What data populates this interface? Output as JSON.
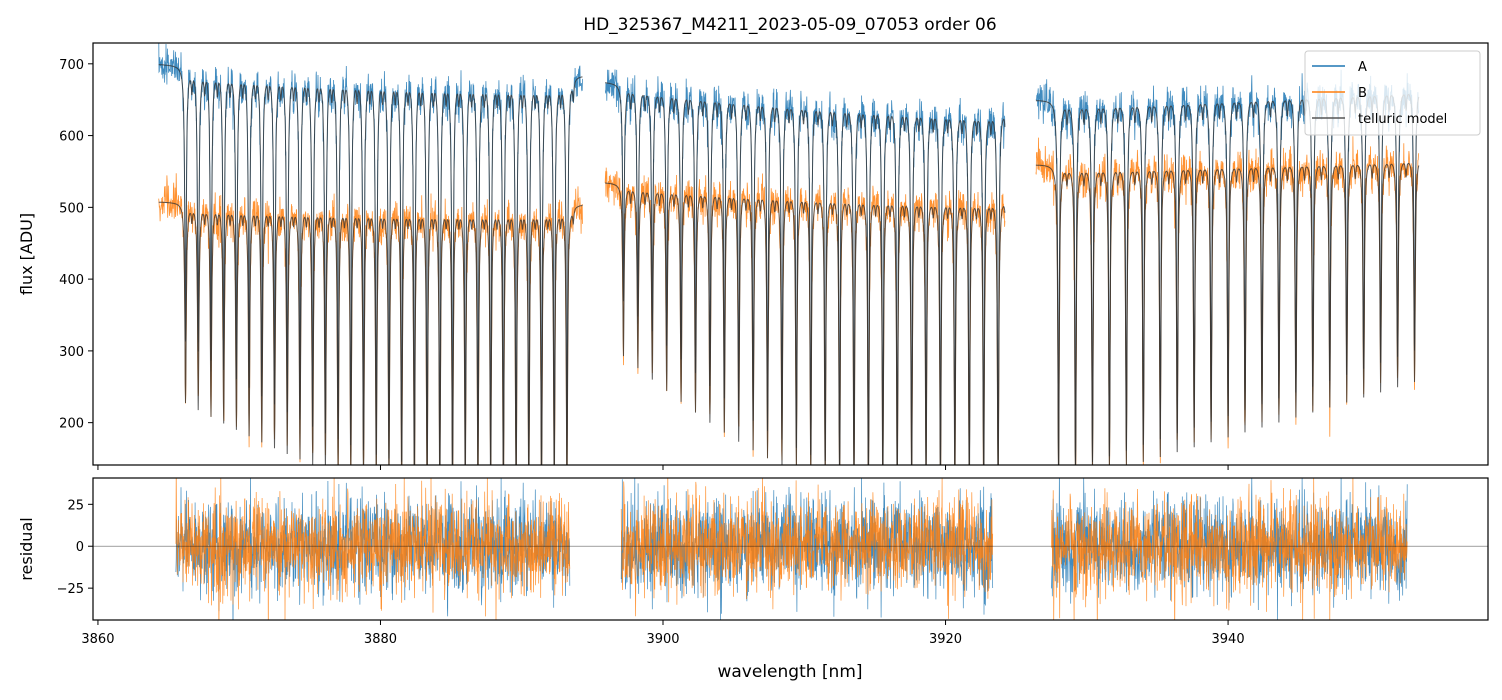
{
  "chart_data": [
    {
      "type": "line",
      "title": "HD_325367_M4211_2023-05-09_07053  order 06",
      "xlabel": "",
      "ylabel": "flux [ADU]",
      "xlim": [
        3859.65,
        3958.4
      ],
      "ylim": [
        141,
        729
      ],
      "yticks": [
        200,
        300,
        400,
        500,
        600,
        700
      ],
      "xticks": [
        3860,
        3880,
        3900,
        3920,
        3940
      ],
      "legend": {
        "placement": "top-right",
        "entries": [
          "A",
          "B",
          "telluric model"
        ]
      },
      "series_colors": {
        "A": "#1f77b4",
        "B": "#ff7f0e",
        "telluric model": "#333333"
      },
      "segments": [
        {
          "start": 3864.3,
          "end": 3894.3,
          "first_line": 3866.2,
          "spacing": 0.9,
          "cont_A": [
            700,
            685
          ],
          "cont_B": [
            508,
            505
          ],
          "depth": [
            0.55,
            0.8
          ]
        },
        {
          "start": 3895.9,
          "end": 3924.2,
          "first_line": 3897.2,
          "spacing": 1.02,
          "cont_A": [
            675,
            640
          ],
          "cont_B": [
            535,
            515
          ],
          "depth": [
            0.45,
            0.8
          ]
        },
        {
          "start": 3926.4,
          "end": 3953.5,
          "first_line": 3928.0,
          "spacing": 1.2,
          "cont_A": [
            650,
            670
          ],
          "cont_B": [
            560,
            572
          ],
          "depth": [
            0.8,
            0.55
          ]
        }
      ]
    },
    {
      "type": "line",
      "xlabel": "wavelength [nm]",
      "ylabel": "residual",
      "xlim": [
        3859.65,
        3958.4
      ],
      "ylim": [
        -44,
        40.7
      ],
      "yticks": [
        -25,
        0,
        25
      ],
      "xticks": [
        3860,
        3880,
        3900,
        3920,
        3940
      ],
      "noise_sigma": 13,
      "reference_line": 0
    }
  ],
  "labels": {
    "title": "HD_325367_M4211_2023-05-09_07053  order 06",
    "ylabel_top": "flux [ADU]",
    "ylabel_bottom": "residual",
    "xlabel": "wavelength [nm]",
    "legend_A": "A",
    "legend_B": "B",
    "legend_model": "telluric model",
    "yt": [
      "200",
      "300",
      "400",
      "500",
      "600",
      "700"
    ],
    "xt": [
      "3860",
      "3880",
      "3900",
      "3920",
      "3940"
    ],
    "rt": [
      "−25",
      "0",
      "25"
    ]
  }
}
